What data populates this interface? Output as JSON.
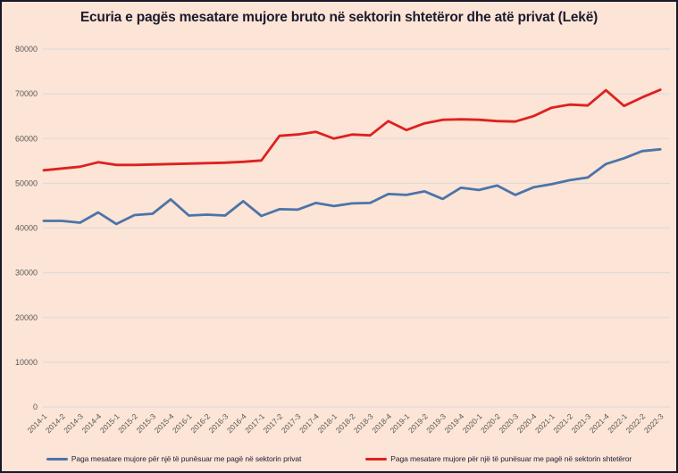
{
  "chart_data": {
    "type": "line",
    "title": "Ecuria e pagës mesatare mujore bruto në sektorin shtetëror dhe atë privat (Lekë)",
    "categories": [
      "2014-1",
      "2014-2",
      "2014-3",
      "2014-4",
      "2015-1",
      "2015-2",
      "2015-3",
      "2015-4",
      "2016-1",
      "2016-2",
      "2016-3",
      "2016-4",
      "2017-1",
      "2017-2",
      "2017-3",
      "2017-4",
      "2018-1",
      "2018-2",
      "2018-3",
      "2018-4",
      "2019-1",
      "2019-2",
      "2019-3",
      "2019-4",
      "2020-1",
      "2020-2",
      "2020-3",
      "2020-4",
      "2021-1",
      "2021-2",
      "2021-3",
      "2021-4",
      "2022-1",
      "2022-2",
      "2022-3"
    ],
    "series": [
      {
        "name": "Paga mesatare mujore për një të punësuar me pagë në sektorin privat",
        "color": "#4b74a9",
        "values": [
          41600,
          41600,
          41200,
          43500,
          40900,
          42900,
          43200,
          46400,
          42800,
          43000,
          42800,
          46000,
          42700,
          44200,
          44100,
          45600,
          44900,
          45500,
          45600,
          47600,
          47400,
          48200,
          46500,
          49000,
          48500,
          49500,
          47400,
          49100,
          49800,
          50700,
          51300,
          54300,
          55600,
          57200,
          57600
        ]
      },
      {
        "name": "Paga mesatare mujore për një të punësuar me pagë në sektorin shtetëror",
        "color": "#de2120",
        "values": [
          52900,
          53300,
          53700,
          54700,
          54100,
          54100,
          54200,
          54300,
          54400,
          54500,
          54600,
          54800,
          55100,
          60600,
          60900,
          61500,
          60000,
          60900,
          60700,
          63900,
          61900,
          63400,
          64200,
          64300,
          64200,
          63900,
          63800,
          65000,
          66900,
          67600,
          67400,
          70800,
          67300,
          69200,
          70900
        ]
      }
    ],
    "ylim": [
      0,
      80000
    ],
    "y_ticks": [
      0,
      10000,
      20000,
      30000,
      40000,
      50000,
      60000,
      70000,
      80000
    ],
    "xlabel": "",
    "ylabel": "",
    "grid": true,
    "legend_position": "bottom",
    "background": "#fce4d6"
  }
}
